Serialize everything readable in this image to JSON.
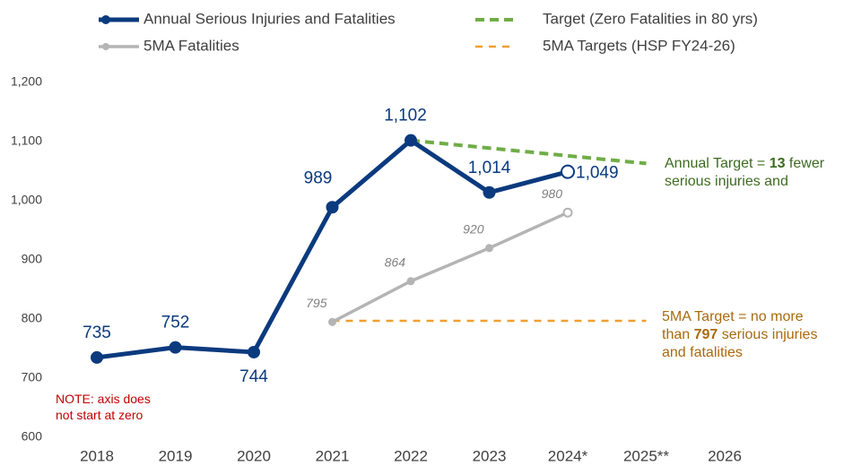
{
  "chart_data": {
    "type": "line",
    "categories": [
      "2018",
      "2019",
      "2020",
      "2021",
      "2022",
      "2023",
      "2024*",
      "2025**",
      "2026"
    ],
    "series": [
      {
        "name": "Annual Serious Injuries and Fatalities",
        "color": "#0b3a7e",
        "style": "solid",
        "values": [
          735,
          752,
          744,
          989,
          1102,
          1014,
          1049,
          null,
          null
        ],
        "value_labels": [
          "735",
          "752",
          "744",
          "989",
          "1,102",
          "1,014",
          "1,049",
          null,
          null
        ]
      },
      {
        "name": "Target (Zero Fatalities in 80 yrs)",
        "color": "#70ad47",
        "style": "dashed",
        "values": [
          null,
          null,
          null,
          null,
          1102,
          1089,
          1076,
          1063,
          null
        ]
      },
      {
        "name": "5MA Fatalities",
        "color": "#b4b4b4",
        "style": "solid",
        "values": [
          null,
          null,
          null,
          795,
          864,
          920,
          980,
          null,
          null
        ]
      },
      {
        "name": "5MA Targets (HSP FY24-26)",
        "color": "#f0a030",
        "style": "dashed",
        "values": [
          null,
          null,
          null,
          797,
          797,
          797,
          797,
          797,
          null
        ]
      }
    ],
    "ylim": [
      600,
      1200
    ],
    "yticks": [
      600,
      700,
      800,
      900,
      {
        "value": 1000,
        "label": "1,000"
      },
      {
        "value": 1100,
        "label": "1,100"
      },
      {
        "value": 1200,
        "label": "1,200"
      }
    ],
    "grid": false,
    "annotations": [
      {
        "color": "#3d6b1f",
        "lines": [
          [
            {
              "text": "Annual Target = ",
              "bold": false
            },
            {
              "text": "13",
              "bold": true
            },
            {
              "text": " fewer",
              "bold": false
            }
          ],
          [
            {
              "text": "serious injuries and",
              "bold": false
            }
          ]
        ]
      },
      {
        "color": "#a86a10",
        "lines": [
          [
            {
              "text": "5MA Target = no more",
              "bold": false
            }
          ],
          [
            {
              "text": "than ",
              "bold": false
            },
            {
              "text": "797",
              "bold": true
            },
            {
              "text": " serious injuries",
              "bold": false
            }
          ],
          [
            {
              "text": "and fatalities",
              "bold": false
            }
          ]
        ]
      },
      {
        "color": "#c00000",
        "lines": [
          [
            {
              "text": "NOTE: axis does",
              "bold": false
            }
          ],
          [
            {
              "text": "not start at zero",
              "bold": false
            }
          ]
        ]
      }
    ]
  }
}
